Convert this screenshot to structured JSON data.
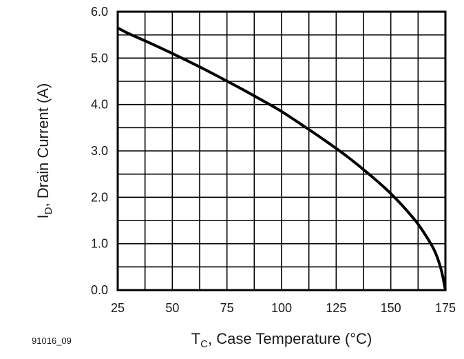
{
  "chart_data": {
    "type": "line",
    "title": "",
    "x_ticks": [
      "25",
      "50",
      "75",
      "100",
      "125",
      "150",
      "175"
    ],
    "y_ticks": [
      "0.0",
      "1.0",
      "2.0",
      "3.0",
      "4.0",
      "5.0",
      "6.0"
    ],
    "xlim": [
      25,
      175
    ],
    "ylim": [
      0,
      6
    ],
    "grid": true,
    "xlabel": {
      "main": "T",
      "sub": "C",
      "rest": ", Case Temperature (°C)"
    },
    "ylabel": {
      "main": "I",
      "sub": "D",
      "rest": ", Drain Current (A)"
    },
    "series": [
      {
        "name": "Drain Current",
        "x": [
          25,
          30,
          40,
          50,
          60,
          70,
          80,
          90,
          100,
          110,
          120,
          130,
          140,
          150,
          160,
          165,
          170,
          173,
          175
        ],
        "y": [
          5.65,
          5.53,
          5.32,
          5.1,
          4.87,
          4.63,
          4.38,
          4.12,
          3.85,
          3.54,
          3.22,
          2.88,
          2.5,
          2.08,
          1.57,
          1.25,
          0.85,
          0.45,
          0.0
        ]
      }
    ]
  },
  "figure_id": "91016_09"
}
